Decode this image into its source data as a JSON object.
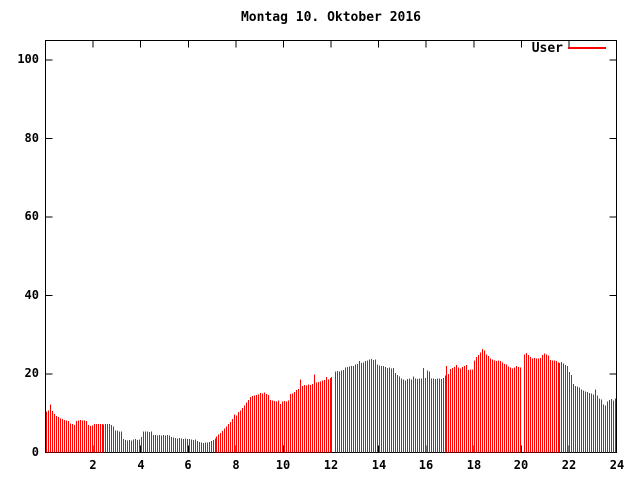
{
  "title": "Montag 10. Oktober 2016",
  "legend": {
    "label": "User"
  },
  "colors": {
    "series": "#ff0000",
    "axis": "#000000",
    "background": "#ffffff",
    "text": "#000000"
  },
  "chart_data": {
    "type": "bar",
    "subtype": "impulses",
    "title": "Montag 10. Oktober 2016",
    "xlabel": "",
    "ylabel": "",
    "xlim": [
      0,
      24
    ],
    "ylim": [
      0,
      105
    ],
    "x_ticks": [
      2,
      4,
      6,
      8,
      10,
      12,
      14,
      16,
      18,
      20,
      22,
      24
    ],
    "y_ticks": [
      0,
      20,
      40,
      60,
      80,
      100
    ],
    "grid": false,
    "legend_position": "top-right-inside",
    "x_unit": "hour-of-day",
    "sample_interval_minutes": 5,
    "series": [
      {
        "name": "User",
        "color": "#ff0000",
        "values": [
          10.5,
          10.7,
          12.2,
          10.6,
          9.8,
          9.3,
          9.0,
          8.7,
          8.5,
          8.3,
          8.1,
          8.0,
          7.4,
          7.2,
          7.0,
          8.0,
          8.2,
          8.3,
          8.2,
          8.1,
          8.0,
          7.0,
          6.8,
          6.9,
          7.2,
          7.3,
          7.2,
          7.3,
          7.2,
          7.1,
          7.2,
          7.3,
          7.2,
          7.0,
          6.6,
          5.6,
          5.6,
          5.4,
          5.3,
          3.4,
          3.2,
          3.1,
          3.2,
          3.1,
          3.3,
          3.5,
          3.2,
          3.3,
          3.9,
          5.4,
          5.3,
          5.4,
          5.2,
          5.3,
          4.5,
          4.4,
          4.3,
          4.4,
          4.3,
          4.4,
          4.3,
          4.4,
          4.3,
          3.9,
          3.8,
          3.7,
          3.6,
          3.7,
          3.6,
          3.5,
          3.6,
          3.5,
          3.4,
          3.3,
          3.2,
          3.3,
          2.9,
          2.7,
          2.5,
          2.4,
          2.5,
          2.6,
          2.7,
          2.9,
          3.2,
          3.6,
          4.1,
          4.6,
          5.0,
          5.5,
          6.1,
          6.6,
          7.2,
          7.8,
          8.6,
          9.7,
          9.4,
          10.3,
          10.7,
          11.4,
          12.0,
          12.8,
          13.4,
          14.1,
          14.4,
          14.5,
          14.6,
          14.8,
          15.2,
          15.0,
          15.3,
          14.9,
          14.6,
          13.4,
          13.2,
          13.1,
          13.0,
          13.2,
          12.4,
          13.0,
          13.1,
          13.0,
          13.2,
          14.9,
          15.1,
          15.4,
          15.9,
          16.2,
          18.6,
          17.0,
          17.2,
          17.1,
          17.3,
          17.2,
          17.4,
          19.9,
          17.9,
          18.0,
          18.1,
          18.3,
          18.5,
          19.2,
          18.6,
          19.0,
          19.3,
          0,
          20.6,
          20.8,
          20.7,
          20.9,
          21.0,
          21.6,
          21.8,
          21.9,
          22.0,
          22.1,
          22.4,
          22.6,
          23.3,
          22.8,
          22.9,
          23.3,
          23.5,
          23.7,
          23.8,
          23.6,
          23.7,
          22.4,
          22.2,
          22.0,
          22.1,
          21.8,
          21.5,
          21.6,
          21.4,
          21.5,
          20.3,
          19.8,
          19.4,
          18.9,
          18.6,
          18.4,
          18.7,
          18.8,
          18.6,
          19.4,
          18.8,
          18.7,
          18.9,
          18.8,
          21.5,
          19.0,
          20.9,
          20.7,
          18.9,
          18.8,
          18.7,
          18.9,
          18.8,
          18.7,
          19.0,
          19.6,
          22.0,
          20.0,
          21.3,
          21.5,
          21.8,
          22.3,
          21.6,
          21.4,
          21.8,
          22.0,
          22.3,
          21.0,
          21.1,
          21.2,
          23.5,
          24.3,
          24.9,
          25.5,
          26.4,
          26.0,
          25.0,
          24.6,
          24.0,
          23.7,
          23.4,
          23.3,
          23.5,
          23.3,
          22.9,
          22.6,
          22.4,
          21.9,
          21.6,
          21.4,
          21.7,
          22.0,
          21.8,
          21.6,
          0,
          25.0,
          25.4,
          24.8,
          24.3,
          24.0,
          24.1,
          23.9,
          24.0,
          24.1,
          24.8,
          25.2,
          25.0,
          24.7,
          23.6,
          23.4,
          23.5,
          23.3,
          23.0,
          22.8,
          23.1,
          22.7,
          22.3,
          22.0,
          20.5,
          19.8,
          17.4,
          17.0,
          16.8,
          16.6,
          16.0,
          15.8,
          15.6,
          15.4,
          15.2,
          15.0,
          14.8,
          16.0,
          14.5,
          13.8,
          13.5,
          12.2,
          12.0,
          13.0,
          13.4,
          13.6,
          13.3,
          13.7
        ]
      }
    ]
  }
}
